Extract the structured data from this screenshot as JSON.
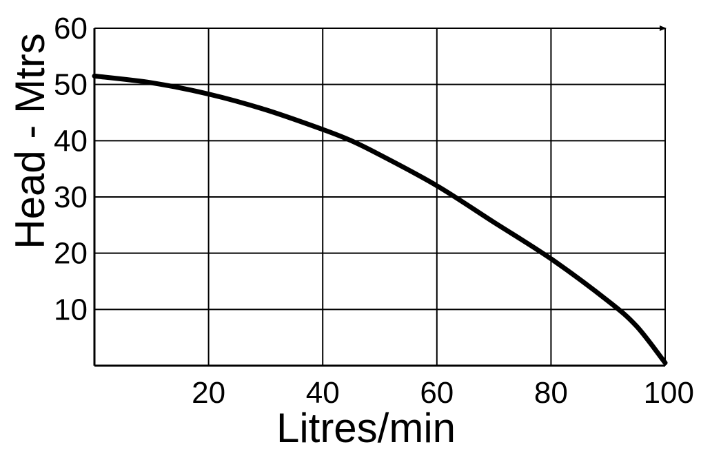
{
  "chart_data": {
    "type": "line",
    "title": "",
    "xlabel": "Litres/min",
    "ylabel": "Head - Mtrs",
    "xlim": [
      0,
      100
    ],
    "ylim": [
      0,
      60
    ],
    "x_ticks": [
      20,
      40,
      60,
      80,
      100
    ],
    "y_ticks": [
      10,
      20,
      30,
      40,
      50,
      60
    ],
    "grid": true,
    "legend": "none",
    "colors": {
      "line": "#000000",
      "grid": "#000000",
      "background": "#ffffff"
    },
    "series": [
      {
        "x": [
          0,
          10,
          20,
          30,
          40,
          45,
          50,
          60,
          70,
          80,
          90,
          95,
          100
        ],
        "y": [
          51.5,
          50.3,
          48.3,
          45.5,
          42,
          40,
          37.5,
          32,
          25.5,
          19,
          11.5,
          7,
          0.5
        ]
      }
    ]
  }
}
